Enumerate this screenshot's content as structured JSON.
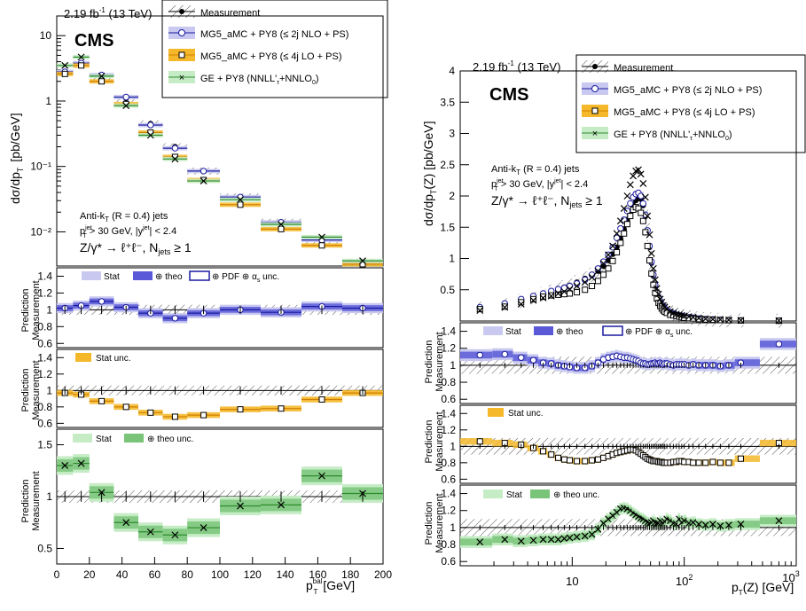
{
  "left": {
    "lumi": "2.19 fb",
    "lumi_sup": "-1",
    "lumi_tail": " (13 TeV)",
    "cms": "CMS",
    "ylabel_top": "dσ/dp",
    "ylabel_top_sub": "T",
    "ylabel_top_unit": "[pb/GeV]",
    "ratio_ylabel_num": "Prediction",
    "ratio_ylabel_den": "Measurement",
    "xlabel": "p",
    "xlabel_sub": "T",
    "xlabel_sup": "bal",
    "xlabel_unit": "[GeV]",
    "annot1": "Anti-k",
    "annot1_sub": "T",
    "annot1_tail": " (R = 0.4) jets",
    "annot2": "p",
    "annot2_sup": "jet",
    "annot2_sub": "T",
    "annot2_tail": " > 30 GeV, |y",
    "annot2_sup2": "jet",
    "annot2_tail2": "| < 2.4",
    "annot3": "Z/γ* → ℓ⁺ℓ⁻, N",
    "annot3_sub": "jets",
    "annot3_tail": " ≥ 1"
  },
  "right": {
    "lumi": "2.19 fb",
    "lumi_sup": "-1",
    "lumi_tail": " (13 TeV)",
    "cms": "CMS",
    "ylabel_top": "dσ/dp",
    "ylabel_top_sub": "T",
    "ylabel_top_tail": "(Z)",
    "ylabel_top_unit": "[pb/GeV]",
    "ratio_ylabel_num": "Prediction",
    "ratio_ylabel_den": "Measurement",
    "xlabel": "p",
    "xlabel_sub": "T",
    "xlabel_tail": "(Z) [GeV]",
    "annot1": "Anti-k",
    "annot1_sub": "T",
    "annot1_tail": " (R = 0.4) jets",
    "annot2": "p",
    "annot2_sup": "jet",
    "annot2_sub": "T",
    "annot2_tail": " > 30 GeV, |y",
    "annot2_sup2": "jet",
    "annot2_tail2": "| < 2.4",
    "annot3": "Z/γ* → ℓ⁺ℓ⁻, N",
    "annot3_sub": "jets",
    "annot3_tail": " ≥ 1"
  },
  "legend": {
    "measurement": "Measurement",
    "mg_nlo": "MG5_aMC + PY8 (≤ 2j NLO + PS)",
    "mg_lo": "MG5_aMC + PY8 (≤ 4j LO + PS)",
    "ge": "GE + PY8 (NNLL'",
    "ge_sub": "τ",
    "ge_tail": "+NNLO",
    "ge_sub2": "0",
    "ge_end": ")"
  },
  "ratio_legends": {
    "nlo_stat": "Stat",
    "nlo_theo": "⊕ theo",
    "nlo_pdf": "⊕ PDF ⊕ α",
    "nlo_pdf_sub": "s",
    "nlo_pdf_tail": " unc.",
    "lo_stat": "Stat unc.",
    "ge_stat": "Stat",
    "ge_theo": "⊕ theo unc."
  },
  "colors": {
    "nlo_fill": "#c8c8f0",
    "nlo_band": "#5a5ad8",
    "nlo_line": "#1a1aa0",
    "lo_fill": "#f5b82a",
    "lo_line": "#d08000",
    "ge_fill": "#c6ecc6",
    "ge_band": "#79c479",
    "ge_line": "#2e8b2e",
    "hatch": "#333333"
  },
  "chart_data": [
    {
      "type": "line",
      "panel": "left-main",
      "xlim": [
        0,
        200
      ],
      "ylim": [
        0.003,
        20
      ],
      "log_y": true,
      "yticks": [
        "10⁻²",
        "10⁻¹",
        "1",
        "10"
      ],
      "bins": [
        [
          0,
          10
        ],
        [
          10,
          20
        ],
        [
          20,
          35
        ],
        [
          35,
          50
        ],
        [
          50,
          65
        ],
        [
          65,
          80
        ],
        [
          80,
          100
        ],
        [
          100,
          125
        ],
        [
          125,
          150
        ],
        [
          150,
          175
        ],
        [
          175,
          200
        ]
      ],
      "series": [
        {
          "name": "Measurement",
          "values": [
            2.7,
            3.6,
            2.3,
            1.1,
            0.45,
            0.2,
            0.085,
            0.034,
            0.014,
            0.0072,
            0.0034
          ]
        },
        {
          "name": "MG5_aMC + PY8 (≤ 2j NLO + PS)",
          "values": [
            2.8,
            3.8,
            2.5,
            1.15,
            0.43,
            0.19,
            0.085,
            0.034,
            0.014,
            0.0075,
            0.0034
          ]
        },
        {
          "name": "MG5_aMC + PY8 (≤ 4j LO + PS)",
          "values": [
            2.6,
            3.5,
            2.0,
            0.9,
            0.33,
            0.14,
            0.062,
            0.026,
            0.011,
            0.0062,
            0.0032
          ]
        },
        {
          "name": "GE + PY8 (NNLL'τ+NNLO0)",
          "values": [
            3.5,
            4.7,
            2.4,
            0.85,
            0.3,
            0.13,
            0.06,
            0.031,
            0.013,
            0.0083,
            0.0036
          ]
        }
      ]
    },
    {
      "type": "line",
      "panel": "left-ratio-nlo",
      "ylim": [
        0.55,
        1.5
      ],
      "yticks": [
        0.6,
        0.8,
        1,
        1.2,
        1.4
      ],
      "values": [
        1.02,
        1.05,
        1.1,
        1.03,
        0.96,
        0.9,
        0.96,
        1.0,
        0.97,
        1.04,
        1.02
      ]
    },
    {
      "type": "line",
      "panel": "left-ratio-lo",
      "ylim": [
        0.55,
        1.5
      ],
      "yticks": [
        0.6,
        0.8,
        1,
        1.2,
        1.4
      ],
      "values": [
        0.97,
        0.95,
        0.87,
        0.8,
        0.73,
        0.68,
        0.7,
        0.77,
        0.78,
        0.89,
        0.97
      ]
    },
    {
      "type": "line",
      "panel": "left-ratio-ge",
      "ylim": [
        0.35,
        1.65
      ],
      "yticks": [
        0.5,
        1,
        1.5
      ],
      "values": [
        1.3,
        1.32,
        1.04,
        0.75,
        0.66,
        0.63,
        0.7,
        0.91,
        0.92,
        1.2,
        1.03
      ]
    },
    {
      "type": "line",
      "panel": "right-main",
      "log_x": true,
      "xlim": [
        1,
        1000
      ],
      "ylim": [
        0,
        4
      ],
      "yticks": [
        0.5,
        1,
        1.5,
        2,
        2.5,
        3,
        3.5,
        4
      ],
      "x": [
        1.5,
        2.5,
        3.5,
        4.5,
        5.5,
        6.5,
        7.5,
        8.5,
        9.5,
        11,
        13,
        15,
        17,
        19,
        21,
        23,
        25,
        27,
        29,
        31,
        33,
        35,
        37,
        39,
        41,
        43,
        45,
        47,
        49,
        51,
        53,
        55,
        57,
        59,
        61,
        63,
        65,
        67,
        70,
        75,
        80,
        85,
        90,
        95,
        100,
        110,
        120,
        135,
        155,
        180,
        210,
        250,
        320,
        700
      ],
      "series": [
        {
          "name": "Measurement",
          "values": [
            0.2,
            0.25,
            0.32,
            0.38,
            0.43,
            0.47,
            0.51,
            0.54,
            0.57,
            0.62,
            0.68,
            0.74,
            0.8,
            0.88,
            0.97,
            1.07,
            1.18,
            1.32,
            1.47,
            1.62,
            1.75,
            1.86,
            1.93,
            1.98,
            1.95,
            1.85,
            1.68,
            1.45,
            1.18,
            0.93,
            0.72,
            0.56,
            0.45,
            0.37,
            0.31,
            0.27,
            0.23,
            0.2,
            0.17,
            0.14,
            0.12,
            0.1,
            0.09,
            0.08,
            0.07,
            0.06,
            0.05,
            0.04,
            0.03,
            0.025,
            0.02,
            0.015,
            0.01,
            0.005
          ]
        },
        {
          "name": "MG5_aMC + PY8 (≤ 2j NLO + PS)",
          "values": [
            0.22,
            0.28,
            0.35,
            0.4,
            0.44,
            0.48,
            0.51,
            0.53,
            0.56,
            0.6,
            0.66,
            0.74,
            0.84,
            0.95,
            1.06,
            1.18,
            1.33,
            1.48,
            1.62,
            1.76,
            1.88,
            1.98,
            2.03,
            2.05,
            2.0,
            1.88,
            1.7,
            1.45,
            1.2,
            0.95,
            0.74,
            0.58,
            0.46,
            0.38,
            0.32,
            0.27,
            0.23,
            0.2,
            0.17,
            0.14,
            0.12,
            0.1,
            0.09,
            0.08,
            0.07,
            0.06,
            0.05,
            0.04,
            0.03,
            0.025,
            0.02,
            0.015,
            0.01,
            0.005
          ]
        },
        {
          "name": "MG5_aMC + PY8 (≤ 4j LO + PS)",
          "values": [
            0.19,
            0.23,
            0.3,
            0.35,
            0.39,
            0.41,
            0.42,
            0.43,
            0.44,
            0.46,
            0.5,
            0.56,
            0.64,
            0.74,
            0.84,
            0.96,
            1.1,
            1.25,
            1.4,
            1.55,
            1.68,
            1.78,
            1.82,
            1.8,
            1.73,
            1.6,
            1.42,
            1.2,
            0.97,
            0.76,
            0.58,
            0.45,
            0.36,
            0.29,
            0.24,
            0.2,
            0.17,
            0.15,
            0.13,
            0.1,
            0.09,
            0.08,
            0.07,
            0.06,
            0.05,
            0.045,
            0.04,
            0.03,
            0.025,
            0.02,
            0.015,
            0.012,
            0.008,
            0.004
          ]
        },
        {
          "name": "GE + PY8 (NNLL'τ+NNLO0)",
          "values": [
            0.17,
            0.22,
            0.27,
            0.33,
            0.37,
            0.4,
            0.44,
            0.47,
            0.51,
            0.56,
            0.62,
            0.7,
            0.8,
            0.92,
            1.06,
            1.2,
            1.4,
            1.6,
            1.8,
            2.0,
            2.18,
            2.32,
            2.4,
            2.42,
            2.35,
            2.2,
            1.98,
            1.68,
            1.38,
            1.08,
            0.84,
            0.66,
            0.52,
            0.43,
            0.35,
            0.3,
            0.25,
            0.22,
            0.19,
            0.15,
            0.13,
            0.11,
            0.1,
            0.09,
            0.08,
            0.07,
            0.06,
            0.045,
            0.035,
            0.028,
            0.022,
            0.017,
            0.011,
            0.006
          ]
        }
      ]
    },
    {
      "type": "line",
      "panel": "right-ratio-nlo",
      "ylim": [
        0.55,
        1.5
      ],
      "yticks": [
        0.6,
        0.8,
        1,
        1.2,
        1.4
      ],
      "values": [
        1.12,
        1.13,
        1.09,
        1.06,
        1.03,
        1.02,
        1.0,
        0.99,
        0.98,
        0.97,
        0.97,
        0.99,
        1.03,
        1.07,
        1.09,
        1.1,
        1.11,
        1.1,
        1.09,
        1.09,
        1.08,
        1.07,
        1.06,
        1.05,
        1.03,
        1.02,
        1.02,
        1.01,
        1.01,
        1.02,
        1.02,
        1.03,
        1.02,
        1.02,
        1.03,
        1.02,
        1.01,
        1.02,
        1.02,
        1.01,
        1.0,
        1.01,
        1.01,
        1.01,
        1.01,
        1.0,
        1.01,
        1.0,
        1.0,
        1.0,
        0.99,
        1.0,
        1.03,
        1.25
      ]
    },
    {
      "type": "line",
      "panel": "right-ratio-lo",
      "ylim": [
        0.55,
        1.5
      ],
      "yticks": [
        0.6,
        0.8,
        1,
        1.2,
        1.4
      ],
      "values": [
        1.06,
        1.04,
        1.02,
        0.98,
        0.94,
        0.9,
        0.86,
        0.84,
        0.83,
        0.82,
        0.82,
        0.83,
        0.84,
        0.86,
        0.88,
        0.9,
        0.92,
        0.93,
        0.94,
        0.95,
        0.96,
        0.96,
        0.95,
        0.93,
        0.91,
        0.89,
        0.87,
        0.85,
        0.84,
        0.83,
        0.82,
        0.82,
        0.82,
        0.81,
        0.81,
        0.81,
        0.8,
        0.8,
        0.8,
        0.8,
        0.81,
        0.81,
        0.82,
        0.82,
        0.81,
        0.81,
        0.8,
        0.8,
        0.8,
        0.81,
        0.8,
        0.8,
        0.85,
        1.04
      ]
    },
    {
      "type": "line",
      "panel": "right-ratio-ge",
      "ylim": [
        0.55,
        1.5
      ],
      "yticks": [
        0.6,
        0.8,
        1,
        1.2,
        1.4
      ],
      "values": [
        0.83,
        0.86,
        0.84,
        0.85,
        0.86,
        0.86,
        0.86,
        0.87,
        0.88,
        0.89,
        0.9,
        0.92,
        0.98,
        1.05,
        1.1,
        1.14,
        1.18,
        1.22,
        1.23,
        1.22,
        1.2,
        1.17,
        1.15,
        1.13,
        1.11,
        1.1,
        1.08,
        1.06,
        1.05,
        1.06,
        1.08,
        1.06,
        1.05,
        1.05,
        1.08,
        1.06,
        1.05,
        1.07,
        1.1,
        1.08,
        1.05,
        1.04,
        1.1,
        1.06,
        1.08,
        1.05,
        1.06,
        1.04,
        1.03,
        1.04,
        1.02,
        1.03,
        1.04,
        1.08
      ]
    }
  ]
}
